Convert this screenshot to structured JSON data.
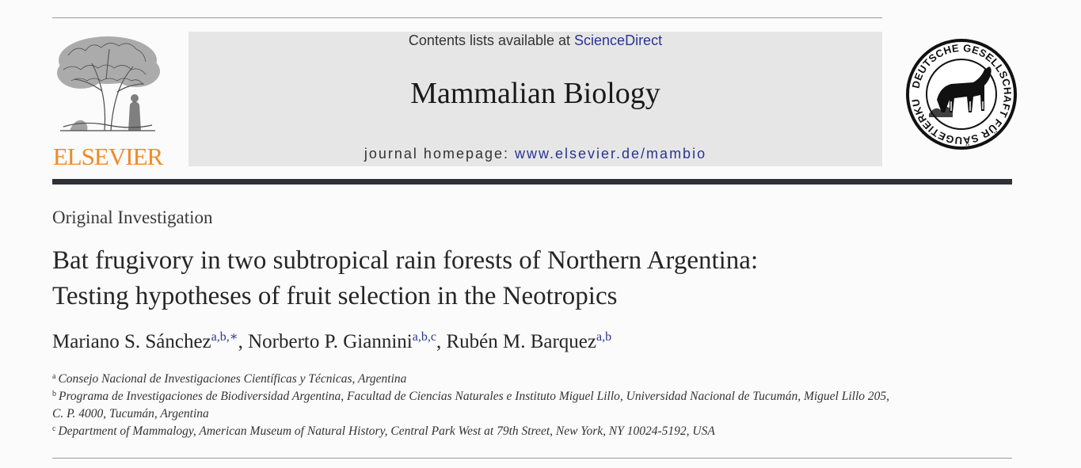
{
  "header": {
    "publisher_name": "ELSEVIER",
    "contents_prefix": "Contents lists available at ",
    "contents_link": "ScienceDirect",
    "journal_title": "Mammalian Biology",
    "homepage_prefix": "journal homepage: ",
    "homepage_url": "www.elsevier.de/mambio",
    "society_seal_text": "DEUTSCHE GESELLSCHAFT FÜR SÄUGETIERKUNDE E.V. BERLIN"
  },
  "article": {
    "type": "Original Investigation",
    "title_line1": "Bat frugivory in two subtropical rain forests of Northern Argentina:",
    "title_line2": "Testing hypotheses of fruit selection in the Neotropics",
    "authors": [
      {
        "name": "Mariano S. Sánchez",
        "marks": "a,b,∗",
        "sep": ", "
      },
      {
        "name": "Norberto P. Giannini",
        "marks": "a,b,c",
        "sep": ", "
      },
      {
        "name": "Rubén M. Barquez",
        "marks": "a,b",
        "sep": ""
      }
    ],
    "affiliations": [
      {
        "mark": "a",
        "text": "Consejo Nacional de Investigaciones Científicas y Técnicas, Argentina"
      },
      {
        "mark": "b",
        "text": "Programa de Investigaciones de Biodiversidad Argentina, Facultad de Ciencias Naturales e Instituto Miguel Lillo, Universidad Nacional de Tucumán, Miguel Lillo 205,",
        "text_cont": "C. P. 4000, Tucumán, Argentina"
      },
      {
        "mark": "c",
        "text": "Department of Mammalogy, American Museum of Natural History, Central Park West at 79th Street, New York, NY 10024-5192, USA"
      }
    ]
  },
  "colors": {
    "publisher_orange": "#f28a24",
    "link_blue": "#2a3590",
    "masthead_gray": "#e6e6e6",
    "rule_dark": "#2e3038"
  }
}
